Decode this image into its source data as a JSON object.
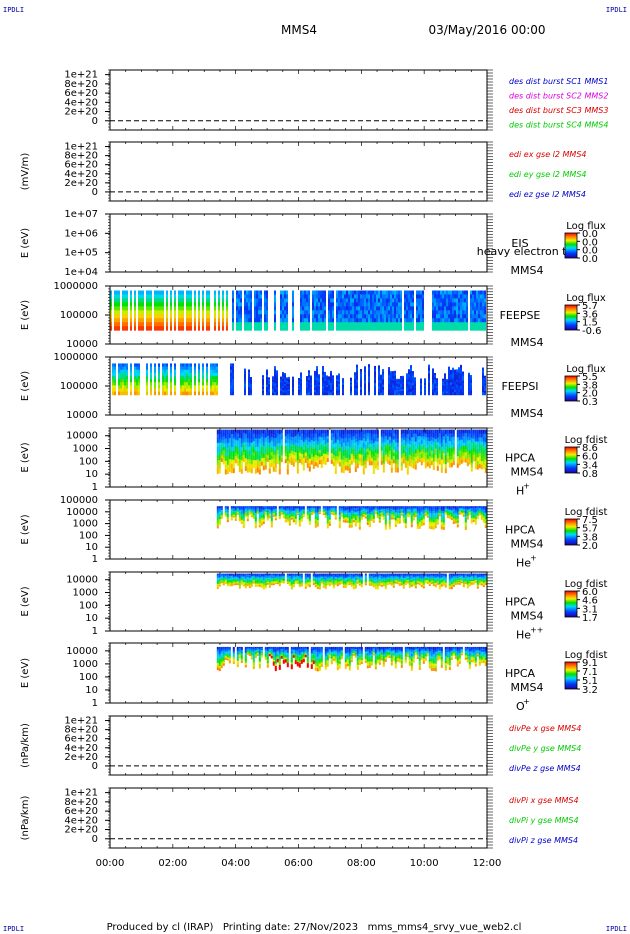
{
  "header": {
    "left_tag": "IPDLI",
    "right_tag": "IPDLI",
    "spacecraft": "MMS4",
    "datetime": "03/May/2016 00:00"
  },
  "footer": {
    "left_tag": "IPDLI",
    "right_tag": "IPDLI",
    "text": "Produced by cl (IRAP)   Printing date: 27/Nov/2023   mms_mms4_srvy_vue_web2.cl"
  },
  "colors": {
    "red": "#dd0000",
    "magenta": "#dd00dd",
    "green": "#00cc00",
    "blue": "#0000cc"
  },
  "chart_data": [
    {
      "type": "line",
      "id": "p1",
      "ylabel": "",
      "ytick_labels": [
        "1e+21",
        "8e+20",
        "6e+20",
        "4e+20",
        "2e+20",
        "0"
      ],
      "ytick_values": [
        1e+21,
        8e+20,
        6e+20,
        4e+20,
        2e+20,
        0
      ],
      "ylim": [
        -2e+20,
        1.1e+21
      ],
      "series": [
        {
          "name": "des dist burst SC1 MMS1",
          "color": "#0000cc",
          "values": []
        },
        {
          "name": "des dist burst SC2 MMS2",
          "color": "#dd00dd",
          "values": []
        },
        {
          "name": "des dist burst SC3 MMS3",
          "color": "#dd0000",
          "values": []
        },
        {
          "name": "des dist burst SC4 MMS4",
          "color": "#00cc00",
          "values": []
        }
      ]
    },
    {
      "type": "line",
      "id": "p2",
      "ylabel": "(mV/m)",
      "ytick_labels": [
        "1e+21",
        "8e+20",
        "6e+20",
        "4e+20",
        "2e+20",
        "0"
      ],
      "ytick_values": [
        1e+21,
        8e+20,
        6e+20,
        4e+20,
        2e+20,
        0
      ],
      "ylim": [
        -2e+20,
        1.1e+21
      ],
      "series": [
        {
          "name": "edi ex gse l2 MMS4",
          "color": "#dd0000",
          "values": []
        },
        {
          "name": "edi ey gse l2 MMS4",
          "color": "#00cc00",
          "values": []
        },
        {
          "name": "edi ez gse l2 MMS4",
          "color": "#0000cc",
          "values": []
        }
      ]
    },
    {
      "type": "heatmap",
      "id": "p3",
      "ylabel": "E (eV)",
      "log_y": true,
      "ytick_labels": [
        "1e+07",
        "1e+06",
        "1e+05",
        "1e+04"
      ],
      "ytick_values": [
        10000000.0,
        1000000.0,
        100000.0,
        10000.0
      ],
      "ylim": [
        10000.0,
        10000000.0
      ],
      "label_top": "EIS",
      "label_overlay": "heavy electron to",
      "label_sc": "MMS4",
      "colorbar_title": "Log flux",
      "colorbar_ticks": [
        "0.0",
        "0.0",
        "0.0",
        "0.0"
      ],
      "data_start_hour": null
    },
    {
      "type": "heatmap",
      "id": "p4",
      "ylabel": "E (eV)",
      "log_y": true,
      "ytick_labels": [
        "1000000",
        "100000",
        "10000"
      ],
      "ytick_values": [
        1000000.0,
        100000.0,
        10000.0
      ],
      "ylim": [
        10000.0,
        1000000.0
      ],
      "label_top": "FEEPSE",
      "label_sc": "MMS4",
      "colorbar_title": "Log flux",
      "colorbar_ticks": [
        "5.7",
        "3.6",
        "1.5",
        "-0.6"
      ],
      "data_start_hour": 0,
      "data_energy_range": [
        30000.0,
        700000.0
      ]
    },
    {
      "type": "heatmap",
      "id": "p5",
      "ylabel": "E (eV)",
      "log_y": true,
      "ytick_labels": [
        "1000000",
        "100000",
        "10000"
      ],
      "ytick_values": [
        1000000.0,
        100000.0,
        10000.0
      ],
      "ylim": [
        10000.0,
        1000000.0
      ],
      "label_top": "FEEPSI",
      "label_sc": "MMS4",
      "colorbar_title": "Log flux",
      "colorbar_ticks": [
        "5.5",
        "3.8",
        "2.0",
        "0.3"
      ],
      "data_start_hour": 0,
      "data_energy_range": [
        50000.0,
        600000.0
      ]
    },
    {
      "type": "heatmap",
      "id": "p6",
      "ylabel": "E (eV)",
      "log_y": true,
      "ytick_labels": [
        "10000",
        "1000",
        "100",
        "10",
        "1"
      ],
      "ytick_values": [
        10000.0,
        1000.0,
        100.0,
        10,
        1
      ],
      "ylim": [
        1,
        40000.0
      ],
      "label_top": "HPCA",
      "label_sc": "MMS4",
      "species": "H",
      "species_sup": "+",
      "colorbar_title": "Log fdist",
      "colorbar_ticks": [
        "8.6",
        "6.0",
        "3.4",
        "0.8"
      ],
      "data_start_hour": 3.4,
      "data_energy_range": [
        10,
        30000.0
      ]
    },
    {
      "type": "heatmap",
      "id": "p7",
      "ylabel": "E (eV)",
      "log_y": true,
      "ytick_labels": [
        "100000",
        "10000",
        "1000",
        "100",
        "10",
        "1"
      ],
      "ytick_values": [
        100000.0,
        10000.0,
        1000.0,
        100.0,
        10,
        1
      ],
      "ylim": [
        1,
        100000.0
      ],
      "label_top": "HPCA",
      "label_sc": "MMS4",
      "species": "He",
      "species_sup": "+",
      "colorbar_title": "Log fdist",
      "colorbar_ticks": [
        "7.5",
        "5.7",
        "3.8",
        "2.0"
      ],
      "data_start_hour": 3.4,
      "data_energy_range": [
        100,
        30000.0
      ]
    },
    {
      "type": "heatmap",
      "id": "p8",
      "ylabel": "E (eV)",
      "log_y": true,
      "ytick_labels": [
        "10000",
        "1000",
        "100",
        "10",
        "1"
      ],
      "ytick_values": [
        10000.0,
        1000.0,
        100.0,
        10,
        1
      ],
      "ylim": [
        1,
        40000.0
      ],
      "label_top": "HPCA",
      "label_sc": "MMS4",
      "species": "He",
      "species_sup": "++",
      "colorbar_title": "Log fdist",
      "colorbar_ticks": [
        "6.0",
        "4.6",
        "3.1",
        "1.7"
      ],
      "data_start_hour": 3.4,
      "data_energy_range": [
        300,
        30000.0
      ]
    },
    {
      "type": "heatmap",
      "id": "p9",
      "ylabel": "E (eV)",
      "log_y": true,
      "ytick_labels": [
        "10000",
        "1000",
        "100",
        "10",
        "1"
      ],
      "ytick_values": [
        10000.0,
        1000.0,
        100.0,
        10,
        1
      ],
      "ylim": [
        1,
        40000.0
      ],
      "label_top": "HPCA",
      "label_sc": "MMS4",
      "species": "O",
      "species_sup": "+",
      "colorbar_title": "Log fdist",
      "colorbar_ticks": [
        "9.1",
        "7.1",
        "5.1",
        "3.2"
      ],
      "data_start_hour": 3.4,
      "data_energy_range": [
        100,
        20000.0
      ]
    },
    {
      "type": "line",
      "id": "p10",
      "ylabel": "(nPa/km)",
      "ytick_labels": [
        "1e+21",
        "8e+20",
        "6e+20",
        "4e+20",
        "2e+20",
        "0"
      ],
      "ytick_values": [
        1e+21,
        8e+20,
        6e+20,
        4e+20,
        2e+20,
        0
      ],
      "ylim": [
        -2e+20,
        1.1e+21
      ],
      "series": [
        {
          "name": "divPe x gse MMS4",
          "color": "#dd0000",
          "values": []
        },
        {
          "name": "divPe y gse MMS4",
          "color": "#00cc00",
          "values": []
        },
        {
          "name": "divPe z gse MMS4",
          "color": "#0000cc",
          "values": []
        }
      ]
    },
    {
      "type": "line",
      "id": "p11",
      "ylabel": "(nPa/km)",
      "ytick_labels": [
        "1e+21",
        "8e+20",
        "6e+20",
        "4e+20",
        "2e+20",
        "0"
      ],
      "ytick_values": [
        1e+21,
        8e+20,
        6e+20,
        4e+20,
        2e+20,
        0
      ],
      "ylim": [
        -2e+20,
        1.1e+21
      ],
      "series": [
        {
          "name": "divPi x gse MMS4",
          "color": "#dd0000",
          "values": []
        },
        {
          "name": "divPi y gse MMS4",
          "color": "#00cc00",
          "values": []
        },
        {
          "name": "divPi z gse MMS4",
          "color": "#0000cc",
          "values": []
        }
      ]
    }
  ],
  "time_axis": {
    "tick_labels": [
      "00:00",
      "02:00",
      "04:00",
      "06:00",
      "08:00",
      "10:00",
      "12:00"
    ],
    "hours": [
      0,
      2,
      4,
      6,
      8,
      10,
      12
    ],
    "xlim": [
      0,
      12
    ]
  }
}
